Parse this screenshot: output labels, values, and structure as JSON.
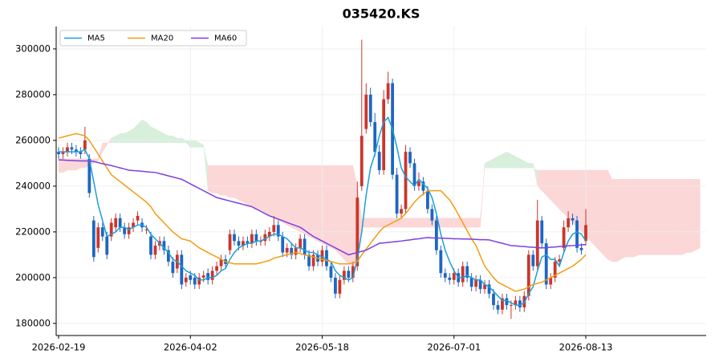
{
  "chart_data": {
    "type": "candlestick",
    "title": "035420.KS",
    "xlim": [
      -0.55,
      147.4
    ],
    "ylim": [
      174700,
      309800
    ],
    "xticks": [
      {
        "value": 0,
        "label": "2026-02-19"
      },
      {
        "value": 30,
        "label": "2026-04-02"
      },
      {
        "value": 60,
        "label": "2026-05-18"
      },
      {
        "value": 90,
        "label": "2026-07-01"
      },
      {
        "value": 120,
        "label": "2026-08-13"
      }
    ],
    "yticks": [
      180000,
      200000,
      220000,
      240000,
      260000,
      280000,
      300000
    ],
    "grid": true,
    "legend": "upper left",
    "up_color": "#c9372c",
    "down_color": "#1f66c1",
    "open": [
      255000,
      254000,
      255000,
      257000,
      256000,
      255000,
      256000,
      252000,
      225000,
      213000,
      222000,
      218000,
      218000,
      222000,
      226000,
      222000,
      219000,
      222000,
      225000,
      224000,
      221000,
      218000,
      210000,
      214000,
      216000,
      212000,
      207000,
      204000,
      210000,
      198000,
      201000,
      200000,
      197000,
      200000,
      202000,
      199000,
      203000,
      205000,
      208000,
      212000,
      219000,
      216000,
      214000,
      216000,
      215000,
      219000,
      216000,
      216000,
      218000,
      220000,
      223000,
      218000,
      211000,
      213000,
      210000,
      213000,
      217000,
      210000,
      205000,
      210000,
      207000,
      212000,
      205000,
      200000,
      193000,
      199000,
      203000,
      200000,
      205000,
      240000,
      265000,
      280000,
      268000,
      255000,
      247000,
      278000,
      285000,
      245000,
      228000,
      230000,
      255000,
      250000,
      240000,
      242000,
      238000,
      230000,
      225000,
      212000,
      202000,
      200000,
      199000,
      202000,
      198000,
      205000,
      200000,
      196000,
      199000,
      195000,
      197000,
      193000,
      188000,
      186000,
      191000,
      188000,
      188000,
      190000,
      187000,
      192000,
      210000,
      205000,
      225000,
      215000,
      197000,
      200000,
      207000,
      213000,
      222000,
      226000,
      225000,
      213000,
      216000
    ],
    "high": [
      257000,
      257000,
      259000,
      259000,
      258000,
      257000,
      266000,
      254000,
      227000,
      224000,
      224000,
      220000,
      226000,
      228000,
      228000,
      224000,
      224000,
      226000,
      229000,
      226000,
      223000,
      220000,
      216000,
      218000,
      218000,
      214000,
      209000,
      212000,
      212000,
      202000,
      203000,
      202000,
      202000,
      203000,
      204000,
      205000,
      207000,
      210000,
      210000,
      221000,
      221000,
      218000,
      218000,
      218000,
      221000,
      221000,
      218000,
      221000,
      222000,
      227000,
      225000,
      220000,
      215000,
      215000,
      215000,
      219000,
      219000,
      212000,
      212000,
      212000,
      214000,
      214000,
      207000,
      202000,
      201000,
      205000,
      205000,
      207000,
      242000,
      304000,
      285000,
      283000,
      272000,
      258000,
      282000,
      290000,
      287000,
      248000,
      232000,
      258000,
      257000,
      252000,
      246000,
      244000,
      240000,
      232000,
      227000,
      214000,
      204000,
      202000,
      204000,
      204000,
      207000,
      207000,
      202000,
      201000,
      201000,
      199000,
      199000,
      195000,
      190000,
      193000,
      193000,
      190000,
      192000,
      192000,
      194000,
      212000,
      212000,
      234000,
      227000,
      217000,
      202000,
      209000,
      210000,
      225000,
      229000,
      228000,
      227000,
      215000,
      230000
    ],
    "low": [
      252000,
      252000,
      253000,
      254000,
      253000,
      252000,
      254000,
      235000,
      207000,
      211000,
      216000,
      208000,
      216000,
      220000,
      220000,
      217000,
      217000,
      220000,
      223000,
      220000,
      219000,
      208000,
      208000,
      212000,
      210000,
      205000,
      200000,
      202000,
      195000,
      196000,
      197000,
      195000,
      195000,
      198000,
      197000,
      197000,
      201000,
      203000,
      204000,
      210000,
      214000,
      212000,
      212000,
      213000,
      213000,
      214000,
      214000,
      214000,
      216000,
      218000,
      216000,
      209000,
      209000,
      208000,
      208000,
      211000,
      208000,
      203000,
      203000,
      205000,
      205000,
      203000,
      198000,
      191000,
      191000,
      197000,
      198000,
      198000,
      203000,
      238000,
      263000,
      266000,
      253000,
      245000,
      245000,
      276000,
      243000,
      226000,
      226000,
      228000,
      248000,
      238000,
      238000,
      236000,
      228000,
      223000,
      210000,
      200000,
      198000,
      197000,
      197000,
      196000,
      196000,
      198000,
      194000,
      194000,
      193000,
      193000,
      191000,
      186000,
      184000,
      184000,
      186000,
      182000,
      186000,
      185000,
      185000,
      190000,
      203000,
      203000,
      213000,
      195000,
      195000,
      198000,
      205000,
      211000,
      220000,
      223000,
      211000,
      210000,
      214000
    ],
    "close": [
      254000,
      255000,
      257000,
      256000,
      255000,
      254000,
      260000,
      237000,
      209000,
      222000,
      218000,
      210000,
      224000,
      226000,
      222000,
      219000,
      222000,
      224000,
      227000,
      222000,
      221000,
      210000,
      214000,
      216000,
      212000,
      207000,
      202000,
      210000,
      197000,
      200000,
      199000,
      197000,
      200000,
      201000,
      199000,
      203000,
      205000,
      208000,
      206000,
      219000,
      216000,
      214000,
      216000,
      215000,
      219000,
      216000,
      216000,
      219000,
      220000,
      223000,
      218000,
      211000,
      213000,
      210000,
      213000,
      217000,
      210000,
      205000,
      210000,
      207000,
      212000,
      205000,
      200000,
      193000,
      199000,
      203000,
      200000,
      205000,
      235000,
      262000,
      280000,
      268000,
      255000,
      247000,
      278000,
      285000,
      245000,
      228000,
      230000,
      255000,
      250000,
      240000,
      242000,
      238000,
      230000,
      225000,
      212000,
      202000,
      200000,
      199000,
      202000,
      198000,
      205000,
      200000,
      196000,
      199000,
      195000,
      197000,
      193000,
      188000,
      186000,
      191000,
      188000,
      188000,
      190000,
      187000,
      192000,
      210000,
      205000,
      225000,
      215000,
      197000,
      200000,
      207000,
      208000,
      222000,
      226000,
      225000,
      213000,
      212000,
      223000
    ],
    "series": [
      {
        "name": "MA5",
        "color": "#1a9fdb",
        "values": [
          255000,
          255000,
          255000,
          255000,
          255000,
          255000,
          256000,
          252000,
          242000,
          232000,
          225000,
          218000,
          219000,
          220000,
          222000,
          222000,
          221000,
          222000,
          223000,
          223000,
          222000,
          219000,
          217000,
          215000,
          213000,
          211000,
          208000,
          207000,
          205000,
          203000,
          202000,
          201000,
          199000,
          199000,
          200000,
          200000,
          201000,
          203000,
          204000,
          208000,
          211000,
          213000,
          214000,
          215000,
          215000,
          216000,
          216000,
          217000,
          218000,
          219000,
          219000,
          218000,
          217000,
          215000,
          213000,
          213000,
          212000,
          211000,
          211000,
          210000,
          209000,
          208000,
          207000,
          203000,
          201000,
          200000,
          199000,
          200000,
          208000,
          220000,
          236000,
          248000,
          254000,
          262000,
          268000,
          270000,
          265000,
          257000,
          248000,
          244000,
          242000,
          240000,
          243000,
          241000,
          239000,
          235000,
          228000,
          219000,
          212000,
          207000,
          203000,
          200000,
          200000,
          201000,
          200000,
          199000,
          199000,
          197000,
          196000,
          194000,
          192000,
          190000,
          190000,
          189000,
          188000,
          188000,
          189000,
          193000,
          196000,
          203000,
          209000,
          210000,
          208000,
          208000,
          205000,
          211000,
          216000,
          219000,
          220000,
          219000,
          216000
        ]
      },
      {
        "name": "MA20",
        "color": "#f39c12",
        "values": [
          261000,
          261500,
          262000,
          262500,
          263000,
          262500,
          262000,
          260000,
          257000,
          254000,
          251000,
          248000,
          245000,
          243500,
          242000,
          240500,
          239000,
          237500,
          236000,
          234500,
          233000,
          231000,
          228000,
          226000,
          224000,
          222000,
          220000,
          218500,
          217000,
          216500,
          216000,
          214500,
          213000,
          212000,
          211000,
          210000,
          209000,
          208000,
          207000,
          206500,
          206000,
          206000,
          206000,
          206000,
          206000,
          206000,
          206500,
          207000,
          207500,
          208500,
          209000,
          209500,
          210000,
          210500,
          211000,
          210500,
          210000,
          209500,
          209000,
          208500,
          208000,
          207500,
          207000,
          206500,
          206000,
          206000,
          206000,
          206500,
          207000,
          210000,
          212500,
          215000,
          217500,
          220000,
          222000,
          223000,
          224000,
          225000,
          226000,
          228000,
          230500,
          233000,
          235000,
          236500,
          238000,
          238000,
          238000,
          238000,
          236000,
          234000,
          231000,
          227500,
          224000,
          220500,
          217000,
          214000,
          209500,
          205000,
          202500,
          200000,
          198000,
          197000,
          196000,
          195000,
          194000,
          194500,
          195000,
          196000,
          197000,
          197500,
          198000,
          199000,
          200000,
          201000,
          202000,
          203000,
          204000,
          205000,
          206500,
          208000,
          210000
        ]
      },
      {
        "name": "MA60",
        "color": "#7b3fe4",
        "values": [
          251500,
          251400,
          251300,
          251200,
          251100,
          251000,
          251000,
          251000,
          250800,
          250300,
          249800,
          249400,
          249000,
          248500,
          248000,
          247500,
          247000,
          246800,
          246700,
          246500,
          246300,
          246100,
          246000,
          245500,
          245000,
          244500,
          244000,
          243500,
          243000,
          242000,
          241000,
          240000,
          239000,
          238000,
          237000,
          236000,
          235000,
          234500,
          234000,
          233500,
          233000,
          232500,
          232000,
          231500,
          231000,
          230000,
          229000,
          228000,
          227000,
          226300,
          225600,
          224900,
          224100,
          223400,
          222700,
          222000,
          220700,
          219300,
          218000,
          217000,
          216000,
          215000,
          214000,
          213000,
          212000,
          211000,
          210000,
          210500,
          211000,
          211500,
          212000,
          213000,
          214000,
          215000,
          215200,
          215400,
          215600,
          215800,
          216000,
          216300,
          216500,
          216800,
          217000,
          217300,
          217500,
          217400,
          217300,
          217300,
          217200,
          217100,
          217000,
          217000,
          216900,
          216900,
          216800,
          216700,
          216600,
          216600,
          216500,
          216000,
          215500,
          215000,
          214500,
          214000,
          213900,
          213700,
          213600,
          213400,
          213300,
          213100,
          213000,
          213100,
          213300,
          213400,
          213600,
          213700,
          213900,
          214000,
          214200,
          214300,
          214500
        ]
      }
    ],
    "cloud": {
      "up_color": "#d7efdb",
      "down_color": "#fcd7d7",
      "span_a": [
        246000,
        246000,
        247000,
        247000,
        247000,
        248000,
        248000,
        249000,
        250000,
        251000,
        255000,
        258000,
        261000,
        262000,
        263000,
        263000,
        264000,
        265000,
        267000,
        269000,
        268000,
        266000,
        265000,
        264000,
        263000,
        262000,
        262000,
        261000,
        261000,
        260000,
        260000,
        260000,
        259000,
        258000,
        238000,
        237000,
        237000,
        236000,
        236000,
        235000,
        235000,
        234000,
        233000,
        232000,
        231000,
        230000,
        229000,
        228000,
        227000,
        226000,
        225000,
        224000,
        223000,
        222000,
        221000,
        220000,
        219000,
        218000,
        217000,
        216000,
        215000,
        214000,
        213000,
        212000,
        210000,
        208000,
        206000,
        205000,
        206000,
        222000,
        222000,
        222000,
        222000,
        222000,
        222000,
        222000,
        222000,
        222000,
        222000,
        222000,
        222000,
        222000,
        222000,
        222000,
        222000,
        222000,
        222000,
        222000,
        222000,
        222000,
        222000,
        222000,
        222000,
        222000,
        222000,
        222000,
        222000,
        250000,
        251000,
        252000,
        253000,
        254000,
        255000,
        254000,
        253000,
        252000,
        251000,
        250000,
        250000,
        240000,
        238000,
        236000,
        234000,
        232000,
        230000,
        228000,
        226000,
        224000,
        222000,
        220000,
        218000,
        216000,
        214000,
        212000,
        210000,
        208000,
        207000,
        207000,
        208000,
        209000,
        209000,
        209000,
        210000,
        210000,
        210000,
        210000,
        210000,
        210000,
        210000,
        210000,
        210000,
        210000,
        210000,
        211000,
        211000,
        212000,
        213000
      ],
      "span_b": [
        252000,
        252000,
        252000,
        252000,
        252000,
        252000,
        252000,
        252000,
        252000,
        252000,
        259000,
        259000,
        259000,
        259000,
        259000,
        259000,
        259000,
        259000,
        259000,
        259000,
        259000,
        259000,
        259000,
        259000,
        259000,
        259000,
        259000,
        259000,
        259000,
        259000,
        257000,
        257000,
        257000,
        257000,
        249000,
        249000,
        249000,
        249000,
        249000,
        249000,
        249000,
        249000,
        249000,
        249000,
        249000,
        249000,
        249000,
        249000,
        249000,
        249000,
        249000,
        249000,
        249000,
        249000,
        249000,
        249000,
        249000,
        249000,
        249000,
        249000,
        249000,
        249000,
        249000,
        249000,
        249000,
        249000,
        249000,
        249000,
        240000,
        226000,
        226000,
        226000,
        226000,
        226000,
        226000,
        226000,
        226000,
        226000,
        226000,
        226000,
        226000,
        226000,
        226000,
        226000,
        226000,
        226000,
        226000,
        226000,
        226000,
        226000,
        226000,
        226000,
        226000,
        226000,
        226000,
        226000,
        226000,
        248000,
        248000,
        248000,
        248000,
        248000,
        248000,
        248000,
        248000,
        248000,
        248000,
        248000,
        248000,
        247000,
        247000,
        247000,
        247000,
        247000,
        247000,
        247000,
        247000,
        247000,
        247000,
        247000,
        247000,
        247000,
        247000,
        247000,
        247000,
        247000,
        243000,
        243000,
        243000,
        243000,
        243000,
        243000,
        243000,
        243000,
        243000,
        243000,
        243000,
        243000,
        243000,
        243000,
        243000,
        243000,
        243000,
        243000,
        243000,
        243000,
        243000
      ]
    }
  }
}
